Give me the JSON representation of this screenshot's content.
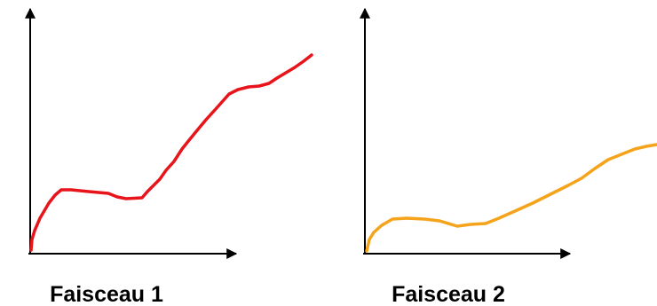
{
  "panels": [
    {
      "label": "Faisceau 1"
    },
    {
      "label": "Faisceau 2"
    }
  ]
}
